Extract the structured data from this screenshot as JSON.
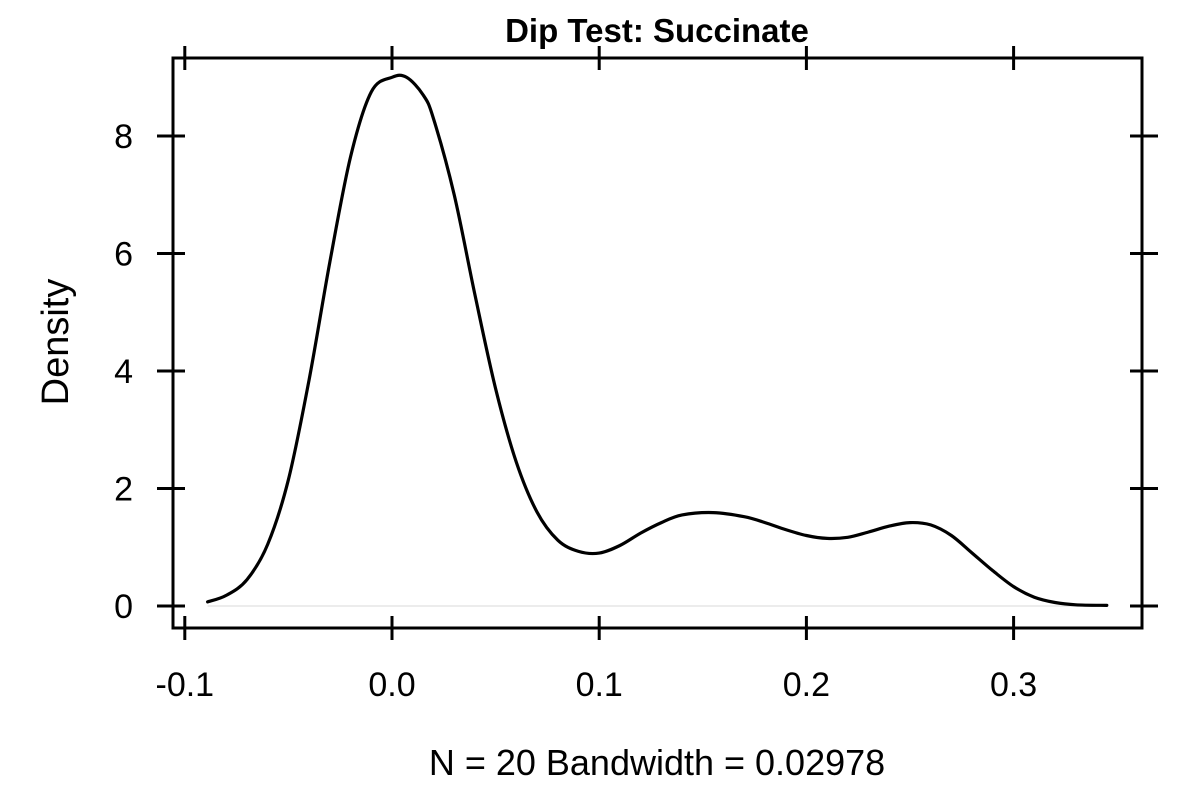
{
  "chart_data": {
    "type": "line",
    "title": "Dip Test: Succinate",
    "xlabel": "N = 20   Bandwidth = 0.02978",
    "ylabel": "Density",
    "xlim": [
      -0.1,
      0.35
    ],
    "ylim": [
      0,
      9.3
    ],
    "x_ticks": [
      -0.1,
      0.0,
      0.1,
      0.2,
      0.3
    ],
    "x_tick_labels": [
      "-0.1",
      "0.0",
      "0.1",
      "0.2",
      "0.3"
    ],
    "y_ticks": [
      0,
      2,
      4,
      6,
      8
    ],
    "y_tick_labels": [
      "0",
      "2",
      "4",
      "6",
      "8"
    ],
    "grid": false,
    "legend": "none",
    "line_color": "#000000",
    "series": [
      {
        "x": [
          -0.089,
          -0.08,
          -0.07,
          -0.06,
          -0.05,
          -0.04,
          -0.03,
          -0.02,
          -0.01,
          0.0,
          0.007,
          0.015,
          0.02,
          0.03,
          0.04,
          0.05,
          0.06,
          0.07,
          0.08,
          0.09,
          0.1,
          0.11,
          0.12,
          0.13,
          0.14,
          0.155,
          0.17,
          0.18,
          0.19,
          0.2,
          0.21,
          0.22,
          0.23,
          0.24,
          0.25,
          0.26,
          0.27,
          0.28,
          0.29,
          0.3,
          0.31,
          0.32,
          0.33,
          0.345
        ],
        "y": [
          0.07,
          0.18,
          0.45,
          1.05,
          2.15,
          3.85,
          5.85,
          7.65,
          8.75,
          9.0,
          9.0,
          8.7,
          8.3,
          7.0,
          5.3,
          3.7,
          2.45,
          1.6,
          1.12,
          0.93,
          0.9,
          1.03,
          1.24,
          1.42,
          1.55,
          1.59,
          1.52,
          1.42,
          1.3,
          1.2,
          1.15,
          1.17,
          1.26,
          1.36,
          1.42,
          1.38,
          1.2,
          0.9,
          0.6,
          0.33,
          0.15,
          0.06,
          0.02,
          0.01
        ]
      }
    ]
  }
}
